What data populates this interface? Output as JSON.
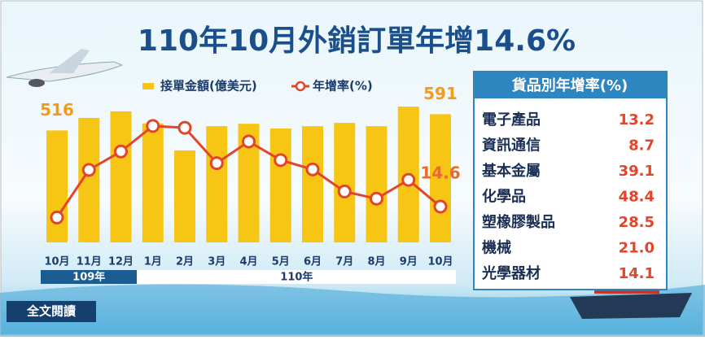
{
  "chart_data": {
    "type": "bar-line",
    "title": "110年10月外銷訂單年增14.6%",
    "categories": [
      "10月",
      "11月",
      "12月",
      "1月",
      "2月",
      "3月",
      "4月",
      "5月",
      "6月",
      "7月",
      "8月",
      "9月",
      "10月"
    ],
    "year_groups": [
      {
        "label": "109年",
        "months": 3
      },
      {
        "label": "110年",
        "months": 10
      }
    ],
    "series": [
      {
        "name": "接單金額(億美元)",
        "color": "#f7c614",
        "values": [
          516,
          574,
          604,
          548,
          424,
          536,
          547,
          525,
          536,
          551,
          536,
          626,
          591
        ]
      },
      {
        "name": "年增率(%)",
        "color": "#e2452c",
        "axis": "y2",
        "values": [
          9.9,
          30.4,
          38.3,
          49.3,
          48.5,
          33.3,
          42.6,
          34.6,
          30.6,
          21.1,
          18.0,
          26.1,
          14.6
        ]
      }
    ],
    "labeled_points": [
      {
        "series": 0,
        "index": 0
      },
      {
        "series": 0,
        "index": 12
      },
      {
        "series": 1,
        "index": 12
      }
    ],
    "ylim": [
      0,
      705
    ],
    "y2lim": [
      -0.8,
      65
    ],
    "grid": false
  },
  "table": {
    "title": "貨品別年增率(%)",
    "rows": [
      [
        "電子產品",
        "13.2"
      ],
      [
        "資訊通信",
        "8.7"
      ],
      [
        "基本金屬",
        "39.1"
      ],
      [
        "化學品",
        "48.4"
      ],
      [
        "塑橡膠製品",
        "28.5"
      ],
      [
        "機械",
        "21.0"
      ],
      [
        "光學器材",
        "14.1"
      ]
    ]
  },
  "button": {
    "label": "全文閱讀"
  }
}
